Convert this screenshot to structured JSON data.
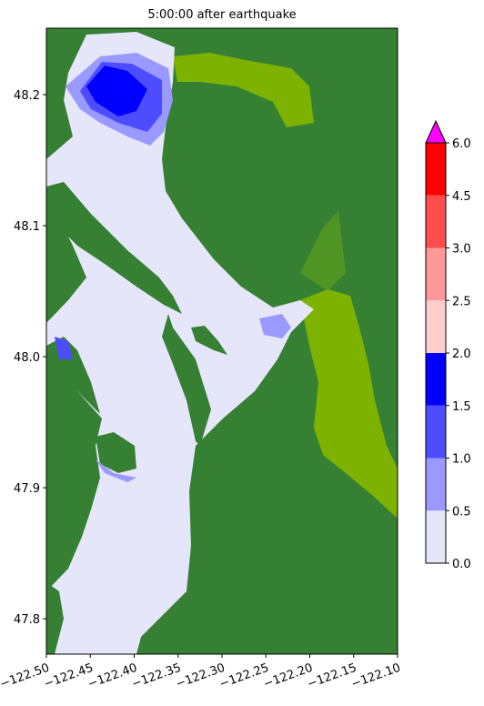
{
  "chart_data": {
    "type": "map",
    "title": "5:00:00 after earthquake",
    "xlim": [
      -122.5,
      -122.1
    ],
    "ylim": [
      47.773,
      48.2507
    ],
    "xticks": [
      {
        "value": -122.5,
        "label": "−122.50"
      },
      {
        "value": -122.45,
        "label": "−122.45"
      },
      {
        "value": -122.4,
        "label": "−122.40"
      },
      {
        "value": -122.35,
        "label": "−122.35"
      },
      {
        "value": -122.3,
        "label": "−122.30"
      },
      {
        "value": -122.25,
        "label": "−122.25"
      },
      {
        "value": -122.2,
        "label": "−122.20"
      },
      {
        "value": -122.15,
        "label": "−122.15"
      },
      {
        "value": -122.1,
        "label": "−122.10"
      }
    ],
    "yticks": [
      47.8,
      47.9,
      {
        "value": 48.0,
        "label": "48.0"
      },
      48.1,
      48.2
    ],
    "colorbar": {
      "levels": [
        {
          "value": 0,
          "label": "0.0"
        },
        {
          "value": 0.5,
          "label": "0.5"
        },
        {
          "value": 1,
          "label": "1.0"
        },
        {
          "value": 1.5,
          "label": "1.5"
        },
        {
          "value": 2,
          "label": "2.0"
        },
        {
          "value": 2.5,
          "label": "2.5"
        },
        {
          "value": 3,
          "label": "3.0"
        },
        {
          "value": 4.5,
          "label": "4.5"
        },
        {
          "value": 6,
          "label": "6.0"
        }
      ],
      "colors": [
        "#e6e6fa",
        "#9999ff",
        "#4d4dff",
        "#0000ff",
        "#ffcccc",
        "#ff9999",
        "#ff4d4d",
        "#ff0000"
      ],
      "extend_color": "#ff00ff"
    }
  }
}
